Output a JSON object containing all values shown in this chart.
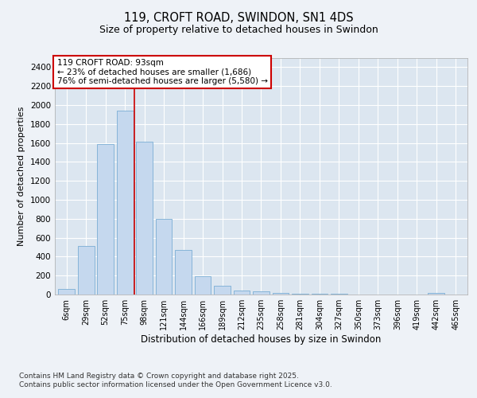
{
  "title": "119, CROFT ROAD, SWINDON, SN1 4DS",
  "subtitle": "Size of property relative to detached houses in Swindon",
  "xlabel": "Distribution of detached houses by size in Swindon",
  "ylabel": "Number of detached properties",
  "categories": [
    "6sqm",
    "29sqm",
    "52sqm",
    "75sqm",
    "98sqm",
    "121sqm",
    "144sqm",
    "166sqm",
    "189sqm",
    "212sqm",
    "235sqm",
    "258sqm",
    "281sqm",
    "304sqm",
    "327sqm",
    "350sqm",
    "373sqm",
    "396sqm",
    "419sqm",
    "442sqm",
    "465sqm"
  ],
  "values": [
    55,
    510,
    1590,
    1940,
    1610,
    800,
    470,
    195,
    90,
    45,
    30,
    20,
    10,
    8,
    5,
    3,
    2,
    1,
    0,
    20,
    0
  ],
  "bar_color": "#c5d8ee",
  "bar_edge_color": "#7aadd4",
  "vline_color": "#cc0000",
  "vline_x_pos": 3.5,
  "annotation_text": "119 CROFT ROAD: 93sqm\n← 23% of detached houses are smaller (1,686)\n76% of semi-detached houses are larger (5,580) →",
  "ylim": [
    0,
    2500
  ],
  "yticks": [
    0,
    200,
    400,
    600,
    800,
    1000,
    1200,
    1400,
    1600,
    1800,
    2000,
    2200,
    2400
  ],
  "footer": "Contains HM Land Registry data © Crown copyright and database right 2025.\nContains public sector information licensed under the Open Government Licence v3.0.",
  "fig_bg_color": "#eef2f7",
  "plot_bg_color": "#dce6f0"
}
